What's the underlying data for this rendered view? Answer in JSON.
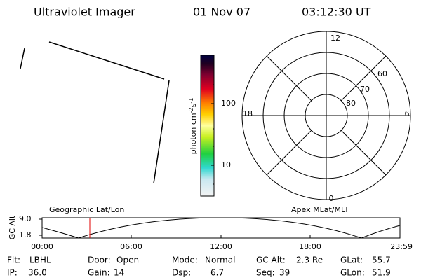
{
  "header": {
    "title": "Ultraviolet Imager",
    "date": "01 Nov 07",
    "time": "03:12:30 UT"
  },
  "colorbar": {
    "label": [
      "photon cm",
      "-2",
      "s",
      "-1"
    ],
    "ticks": [
      "100",
      "10"
    ]
  },
  "polar": {
    "mlt_labels": [
      "12",
      "18",
      "6",
      "0"
    ],
    "lat_labels": [
      "60",
      "70",
      "80"
    ]
  },
  "orbit": {
    "axis_label": "GC Alt",
    "yticks": [
      "9.0",
      "1.8"
    ],
    "left_title": "Geographic Lat/Lon",
    "right_title": "Apex MLat/MLT",
    "xticks": [
      "00:00",
      "06:00",
      "12:00",
      "18:00",
      "23:59"
    ]
  },
  "status": [
    [
      {
        "label": "Flt:",
        "value": "LBHL"
      },
      {
        "label": "Door:",
        "value": "Open"
      },
      {
        "label": "Mode:",
        "value": "Normal"
      },
      {
        "label": "GC Alt:",
        "value": "2.3 Re"
      },
      {
        "label": "GLat:",
        "value": "55.7"
      }
    ],
    [
      {
        "label": "IP:",
        "value": "36.0"
      },
      {
        "label": "Gain:",
        "value": "14"
      },
      {
        "label": "Dsp:",
        "value": "6.7"
      },
      {
        "label": "Seq:",
        "value": "39"
      },
      {
        "label": "GLon:",
        "value": "51.9"
      }
    ]
  ]
}
